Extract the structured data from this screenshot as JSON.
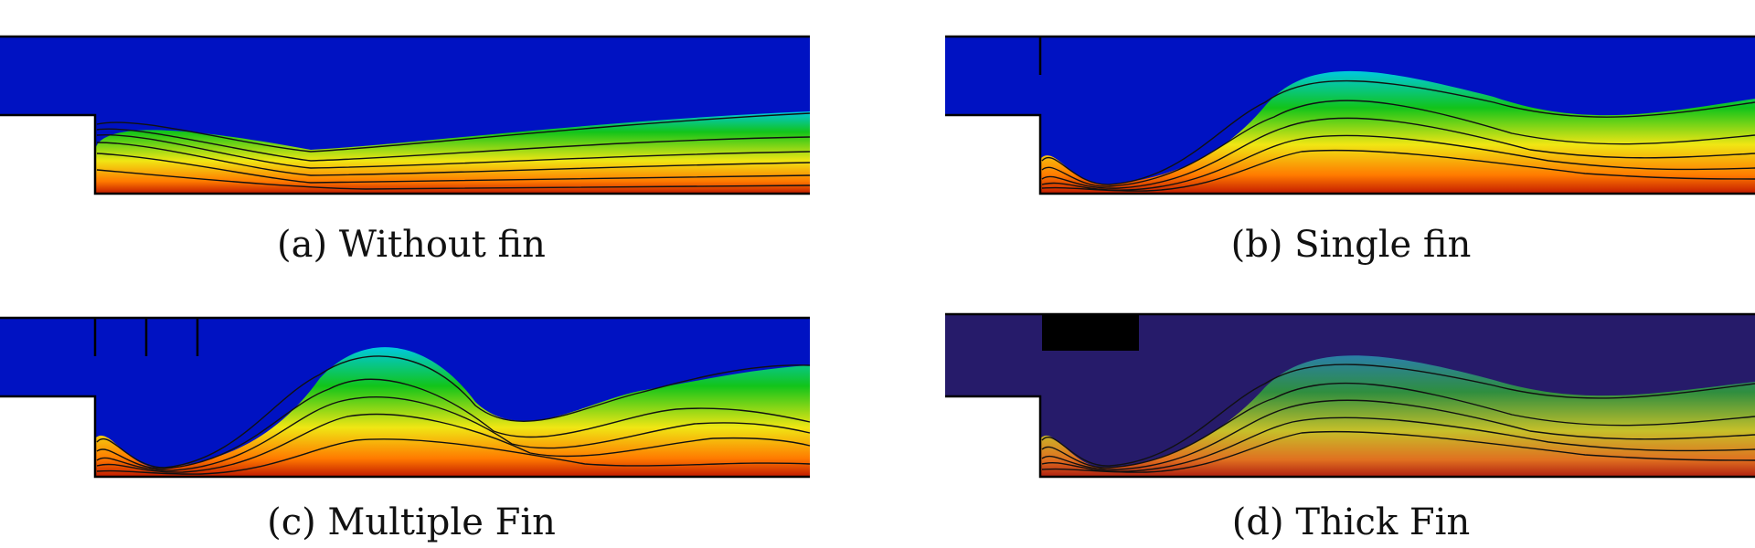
{
  "figure": {
    "panels": [
      {
        "id": "a",
        "caption": "(a) Without fin",
        "fins": "none"
      },
      {
        "id": "b",
        "caption": "(b) Single fin",
        "fins": "single"
      },
      {
        "id": "c",
        "caption": "(c) Multiple Fin",
        "fins": "multiple"
      },
      {
        "id": "d",
        "caption": "(d) Thick Fin",
        "fins": "thick"
      }
    ],
    "colormap": [
      "#0012c2",
      "#00c8e0",
      "#12c41a",
      "#f0e614",
      "#ff7a00",
      "#c21a00"
    ]
  }
}
